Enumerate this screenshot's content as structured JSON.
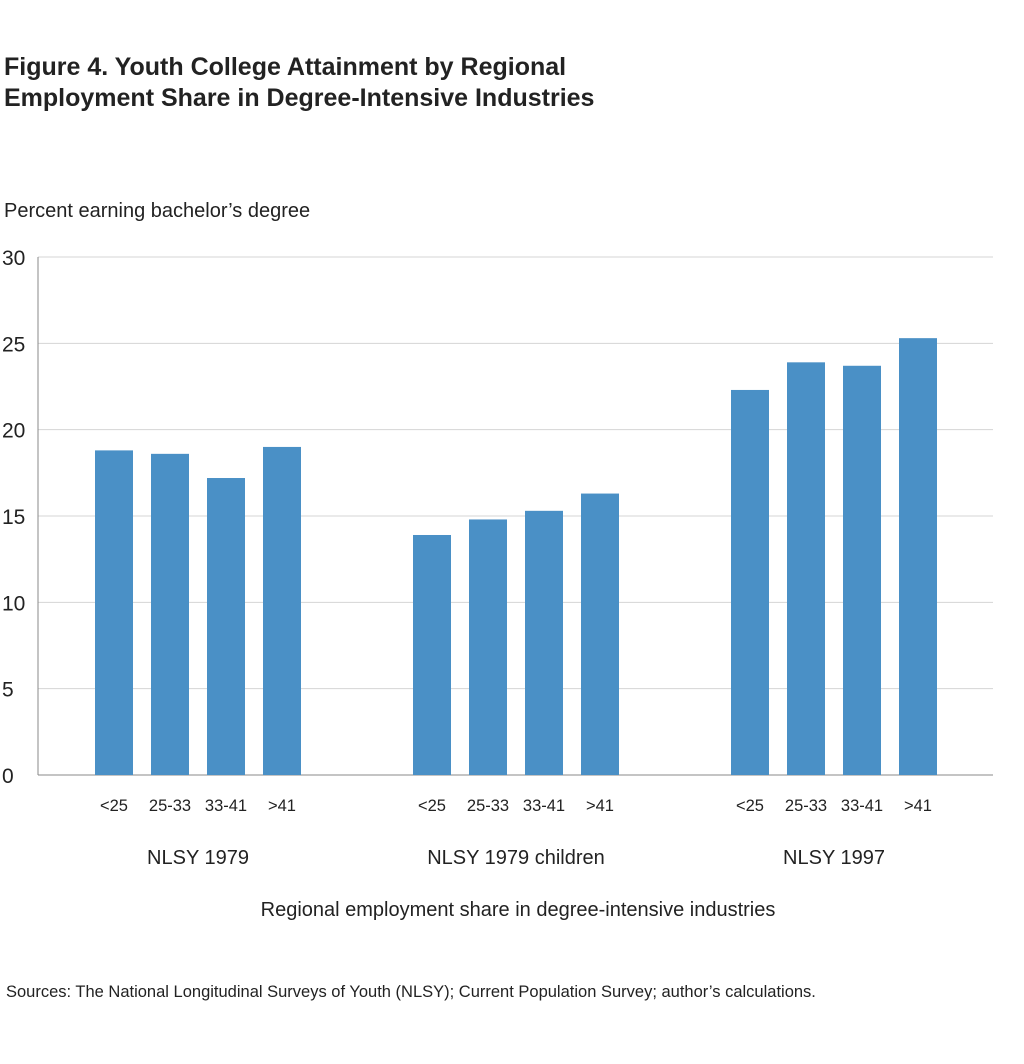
{
  "title_line1": "Figure 4. Youth College Attainment by Regional",
  "title_line2": "Employment Share in Degree-Intensive Industries",
  "source": "Sources: The National Longitudinal Surveys of Youth (NLSY); Current Population Survey; author’s calculations.",
  "chart_data": {
    "type": "bar",
    "title": "Figure 4. Youth College Attainment by Regional Employment Share in Degree-Intensive Industries",
    "ylabel": "Percent earning bachelor’s degree",
    "xlabel": "Regional employment share in degree-intensive industries",
    "ylim": [
      0,
      30
    ],
    "yticks": [
      "0",
      "5",
      "10",
      "15",
      "20",
      "25",
      "30"
    ],
    "grid": true,
    "bar_color": "#4a90c6",
    "groups": [
      {
        "name": "NLSY 1979",
        "categories": [
          "<25",
          "25-33",
          "33-41",
          ">41"
        ],
        "values": [
          18.8,
          18.6,
          17.2,
          19.0
        ]
      },
      {
        "name": "NLSY 1979 children",
        "categories": [
          "<25",
          "25-33",
          "33-41",
          ">41"
        ],
        "values": [
          13.9,
          14.8,
          15.3,
          16.3
        ]
      },
      {
        "name": "NLSY 1997",
        "categories": [
          "<25",
          "25-33",
          "33-41",
          ">41"
        ],
        "values": [
          22.3,
          23.9,
          23.7,
          25.3
        ]
      }
    ]
  }
}
